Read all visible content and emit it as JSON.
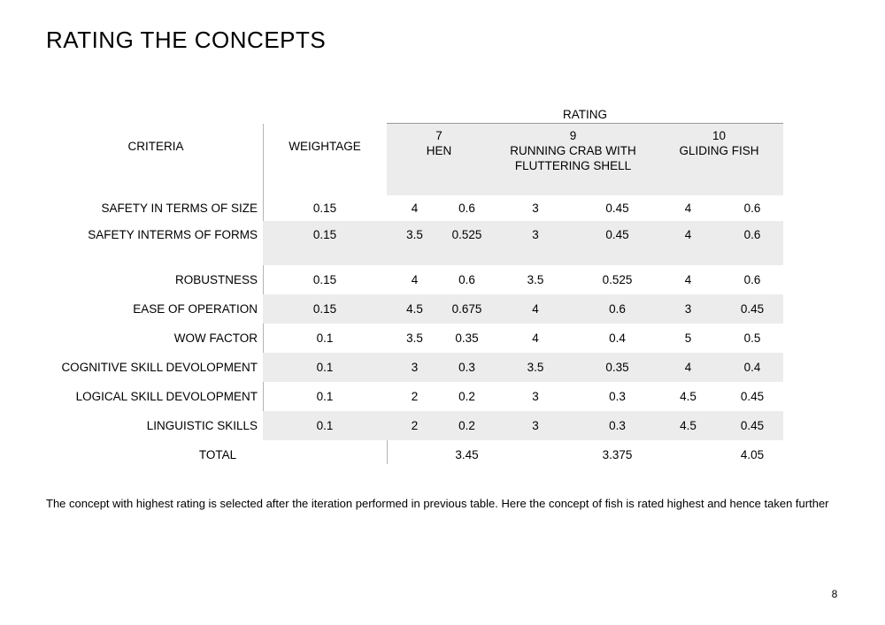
{
  "title": "RATING THE CONCEPTS",
  "table": {
    "rating_label": "RATING",
    "criteria_header": "CRITERIA",
    "weightage_header": "WEIGHTAGE",
    "concepts": [
      {
        "score": "7",
        "name": "HEN"
      },
      {
        "score": "9",
        "name": "RUNNING CRAB WITH FLUTTERING SHELL"
      },
      {
        "score": "10",
        "name": "GLIDING FISH"
      }
    ],
    "rows": [
      {
        "criteria": "SAFETY IN TERMS OF SIZE",
        "weightage": "0.15",
        "values": [
          "4",
          "0.6",
          "3",
          "0.45",
          "4",
          "0.6"
        ],
        "shaded": false,
        "tall": false
      },
      {
        "criteria": "SAFETY INTERMS OF FORMS",
        "weightage": "0.15",
        "values": [
          "3.5",
          "0.525",
          "3",
          "0.45",
          "4",
          "0.6"
        ],
        "shaded": true,
        "tall": true
      },
      {
        "criteria": "ROBUSTNESS",
        "weightage": "0.15",
        "values": [
          "4",
          "0.6",
          "3.5",
          "0.525",
          "4",
          "0.6"
        ],
        "shaded": false,
        "tall": false
      },
      {
        "criteria": "EASE OF OPERATION",
        "weightage": "0.15",
        "values": [
          "4.5",
          "0.675",
          "4",
          "0.6",
          "3",
          "0.45"
        ],
        "shaded": true,
        "tall": false
      },
      {
        "criteria": "WOW FACTOR",
        "weightage": "0.1",
        "values": [
          "3.5",
          "0.35",
          "4",
          "0.4",
          "5",
          "0.5"
        ],
        "shaded": false,
        "tall": false
      },
      {
        "criteria": "COGNITIVE SKILL DEVOLOPMENT",
        "weightage": "0.1",
        "values": [
          "3",
          "0.3",
          "3.5",
          "0.35",
          "4",
          "0.4"
        ],
        "shaded": true,
        "tall": false
      },
      {
        "criteria": "LOGICAL SKILL DEVOLOPMENT",
        "weightage": "0.1",
        "values": [
          "2",
          "0.2",
          "3",
          "0.3",
          "4.5",
          "0.45"
        ],
        "shaded": false,
        "tall": false
      },
      {
        "criteria": "LINGUISTIC SKILLS",
        "weightage": "0.1",
        "values": [
          "2",
          "0.2",
          "3",
          "0.3",
          "4.5",
          "0.45"
        ],
        "shaded": true,
        "tall": false
      }
    ],
    "total_row": {
      "label": "TOTAL",
      "values": [
        "3.45",
        "3.375",
        "4.05"
      ]
    }
  },
  "footer_note": "The concept with highest rating is selected after the iteration performed in previous table. Here the concept of fish is rated highest and hence taken further",
  "page_number": "8",
  "colors": {
    "band": "#ececec",
    "rule": "#9a9a9a",
    "divider": "#b3b3b3",
    "text": "#000000",
    "background": "#ffffff"
  }
}
